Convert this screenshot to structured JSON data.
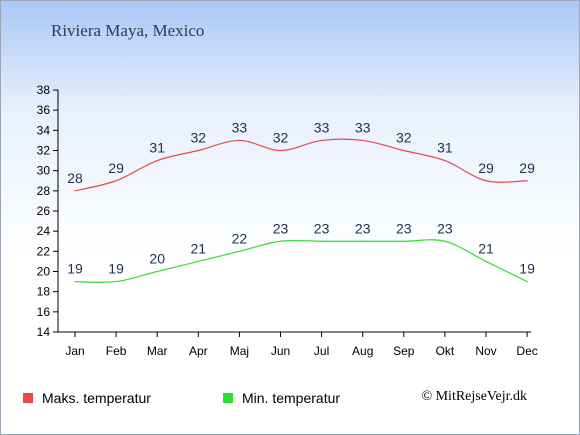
{
  "title": "Riviera Maya, Mexico",
  "copyright": "© MitRejseVejr.dk",
  "colors": {
    "max": "#e84a4a",
    "min": "#2fe02f",
    "label": "#1e3050"
  },
  "chart_data": {
    "type": "line",
    "title": "Riviera Maya, Mexico",
    "categories": [
      "Jan",
      "Feb",
      "Mar",
      "Apr",
      "Maj",
      "Jun",
      "Jul",
      "Aug",
      "Sep",
      "Okt",
      "Nov",
      "Dec"
    ],
    "yticks": [
      14,
      16,
      18,
      20,
      22,
      24,
      26,
      28,
      30,
      32,
      34,
      36,
      38
    ],
    "ylim": [
      14,
      38
    ],
    "legend_position": "bottom",
    "grid": false,
    "series": [
      {
        "name": "Maks. temperatur",
        "values": [
          28,
          29,
          31,
          32,
          33,
          32,
          33,
          33,
          32,
          31,
          29,
          29
        ]
      },
      {
        "name": "Min. temperatur",
        "values": [
          19,
          19,
          20,
          21,
          22,
          23,
          23,
          23,
          23,
          23,
          21,
          19
        ]
      }
    ]
  }
}
